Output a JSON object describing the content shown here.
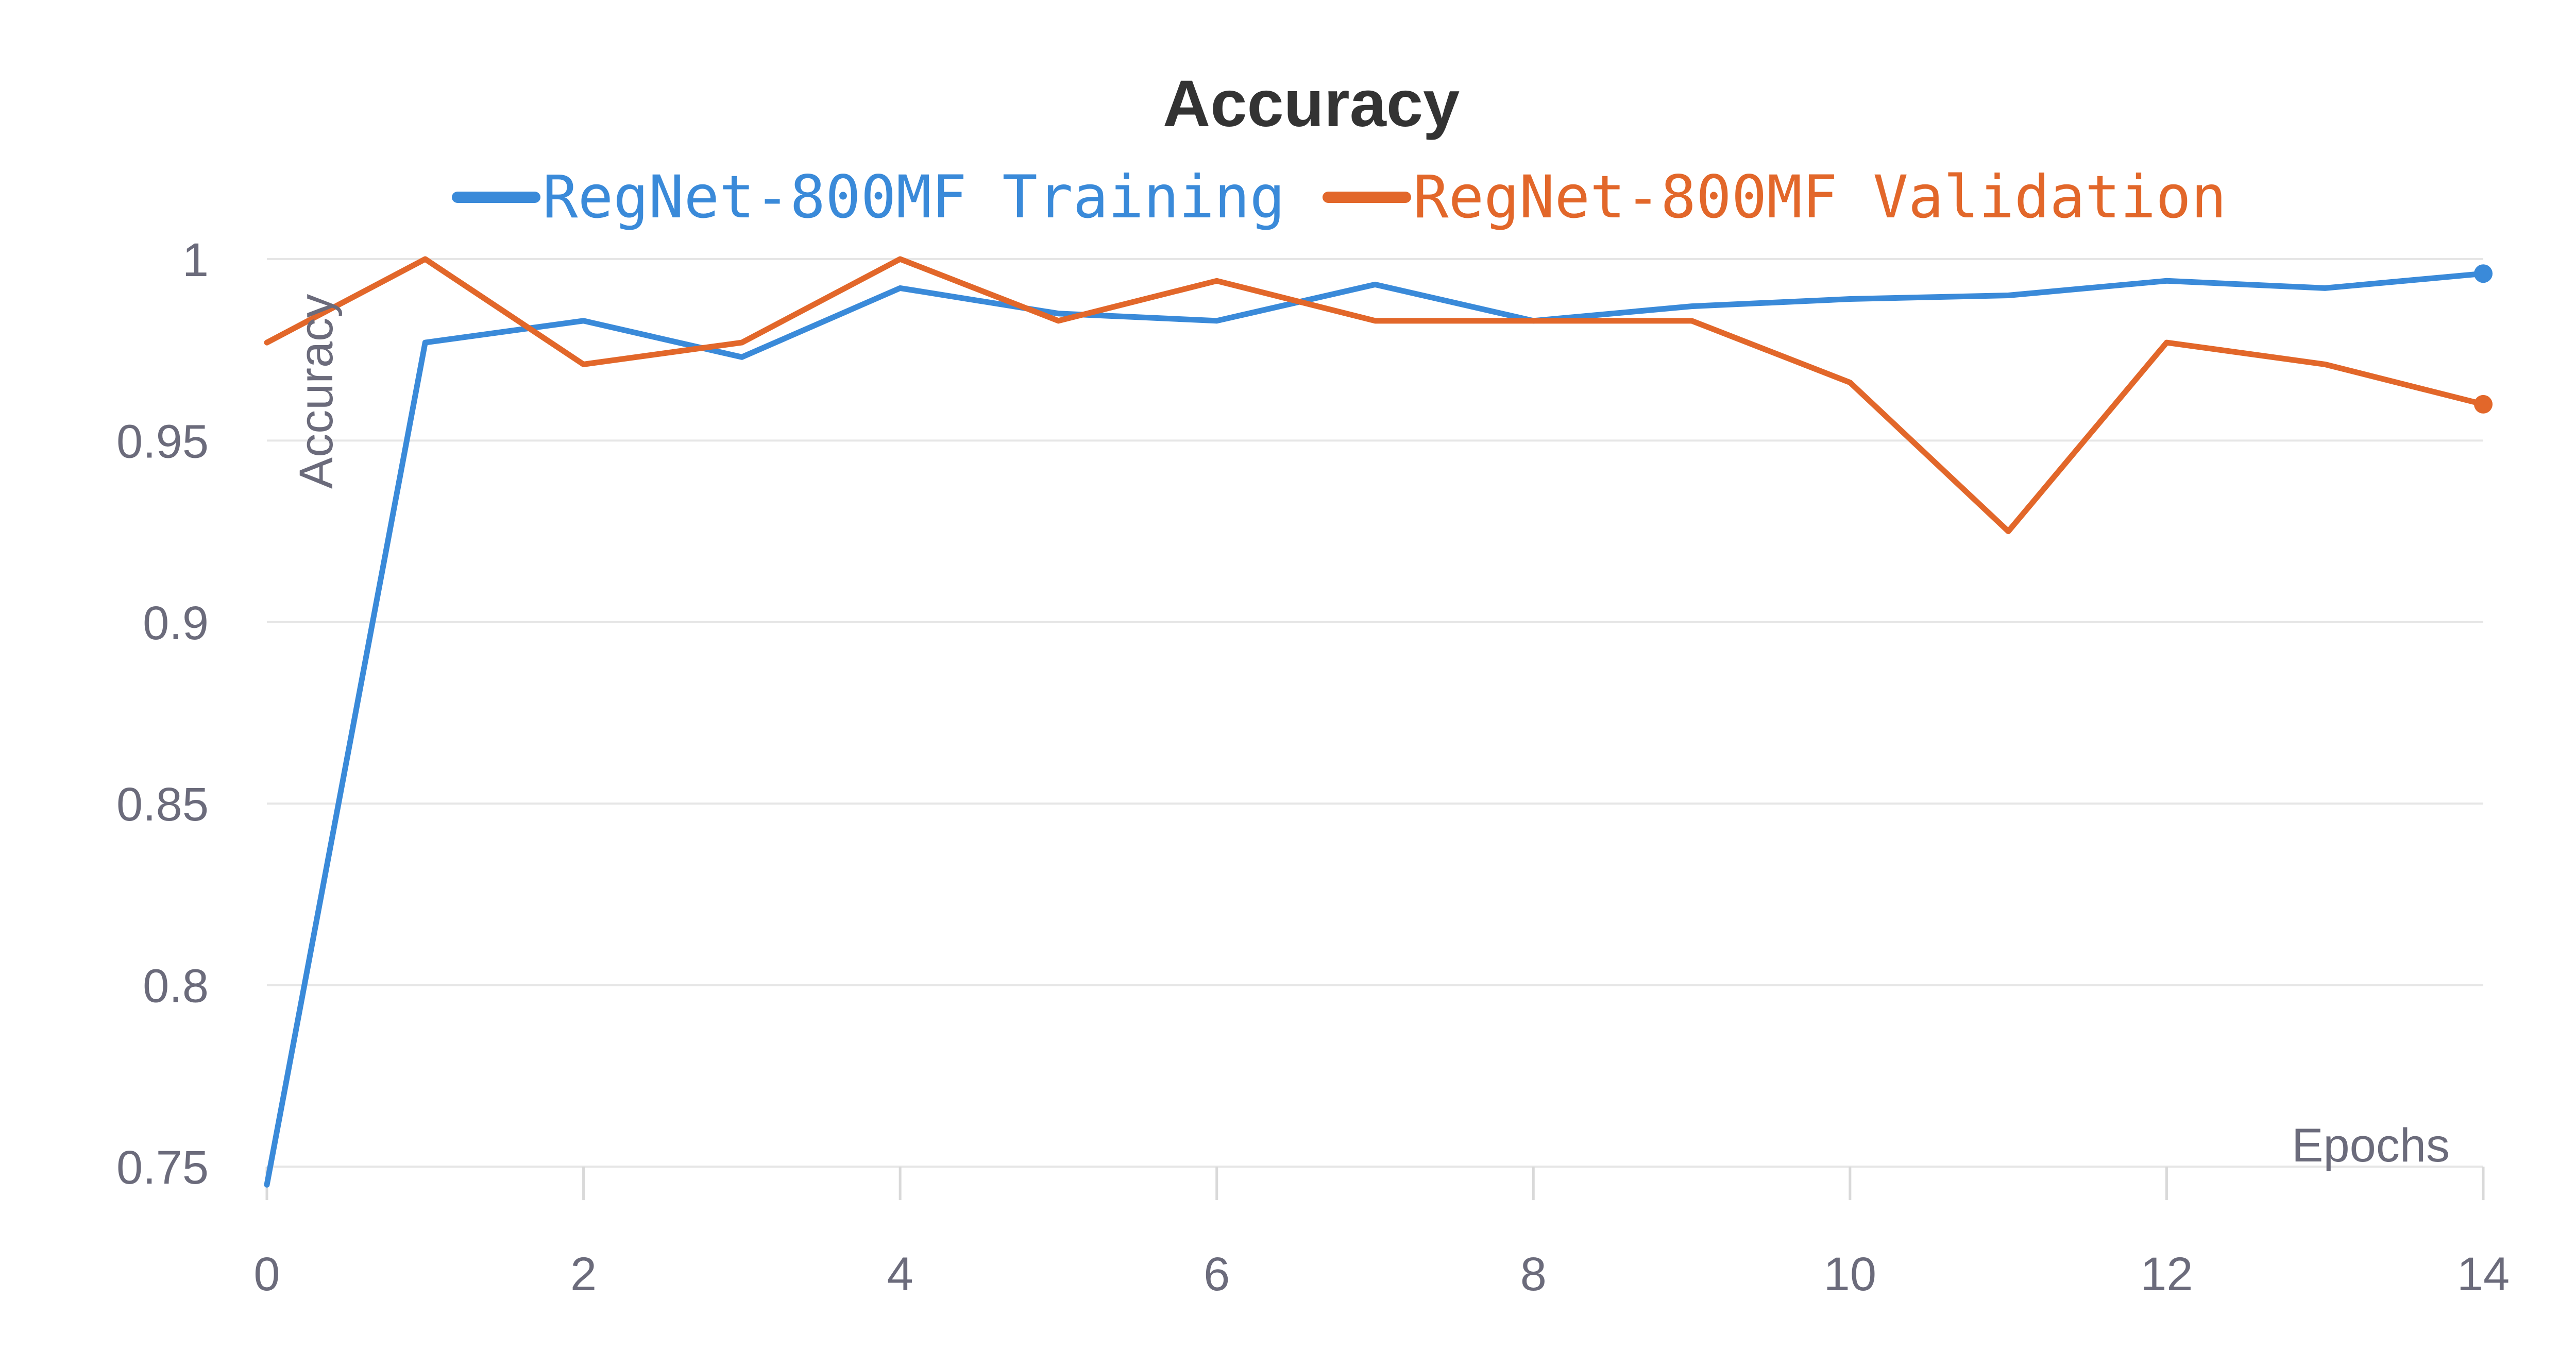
{
  "chart_data": {
    "type": "line",
    "title": "Accuracy",
    "xlabel": "Epochs",
    "ylabel": "Accuracy",
    "xlim": [
      0,
      14
    ],
    "ylim": [
      0.75,
      1
    ],
    "xticks": [
      "0",
      "2",
      "4",
      "6",
      "8",
      "10",
      "12",
      "14"
    ],
    "yticks": [
      "0.75",
      "0.8",
      "0.85",
      "0.9",
      "0.95",
      "1"
    ],
    "grid": true,
    "legend_position": "top",
    "x": [
      0,
      1,
      2,
      3,
      4,
      5,
      6,
      7,
      8,
      9,
      10,
      11,
      12,
      13,
      14
    ],
    "series": [
      {
        "name": "RegNet-800MF Training",
        "color": "#3a8ad9",
        "values": [
          0.745,
          0.977,
          0.983,
          0.973,
          0.992,
          0.985,
          0.983,
          0.993,
          0.983,
          0.987,
          0.989,
          0.99,
          0.994,
          0.992,
          0.996
        ]
      },
      {
        "name": "RegNet-800MF Validation",
        "color": "#e2672a",
        "values": [
          0.977,
          1.0,
          0.971,
          0.977,
          1.0,
          0.983,
          0.994,
          0.983,
          0.983,
          0.983,
          0.966,
          0.925,
          0.977,
          0.971,
          0.96
        ]
      }
    ]
  }
}
